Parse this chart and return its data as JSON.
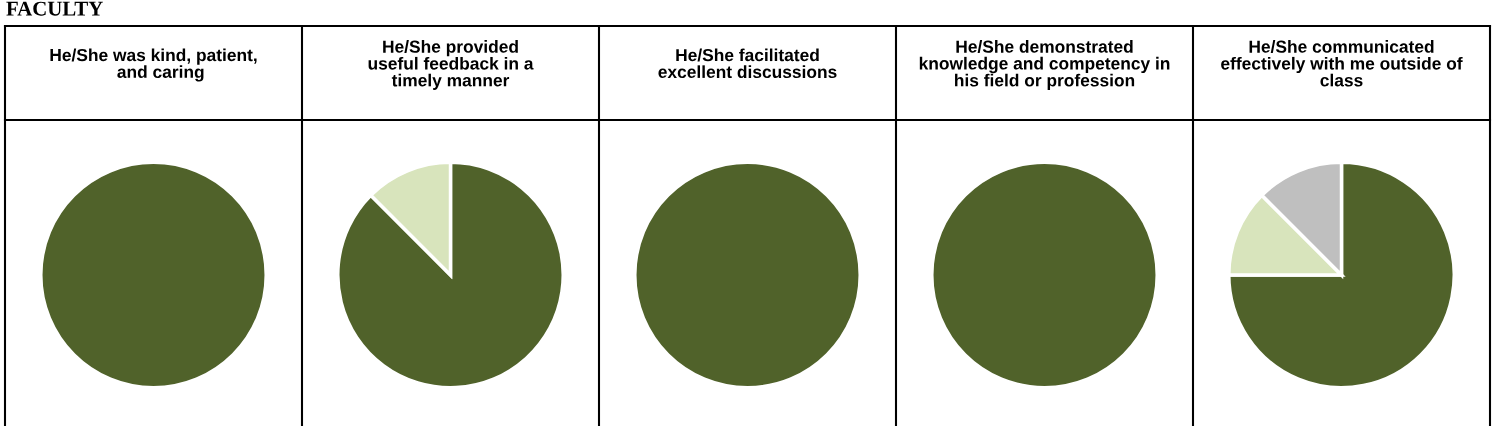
{
  "chart_data": [
    {
      "type": "pie",
      "title": "He/She was kind, patient,\n   and caring",
      "annotations": [
        "FACULTY"
      ],
      "categories": [
        null
      ],
      "values": [
        100
      ],
      "colors": [
        "#50622a"
      ]
    },
    {
      "type": "pie",
      "title": "He/She provided\nuseful feedback in a\ntimely manner",
      "categories": [
        null,
        null
      ],
      "values": [
        87.5,
        12.5
      ],
      "colors": [
        "#50622a",
        "#d8e4bc"
      ]
    },
    {
      "type": "pie",
      "title": "He/She facilitated\nexcellent discussions",
      "categories": [
        null
      ],
      "values": [
        100
      ],
      "colors": [
        "#50622a"
      ]
    },
    {
      "type": "pie",
      "title": "He/She demonstrated\nknowledge and competency in\nhis field or profession",
      "categories": [
        null
      ],
      "values": [
        100
      ],
      "colors": [
        "#50622a"
      ]
    },
    {
      "type": "pie",
      "title": "He/She communicated\neffectively with me outside of\nclass",
      "categories": [
        null,
        null,
        null
      ],
      "values": [
        75,
        12.5,
        12.5
      ],
      "colors": [
        "#50622a",
        "#d8e4bc",
        "#bfbfbf"
      ]
    }
  ]
}
